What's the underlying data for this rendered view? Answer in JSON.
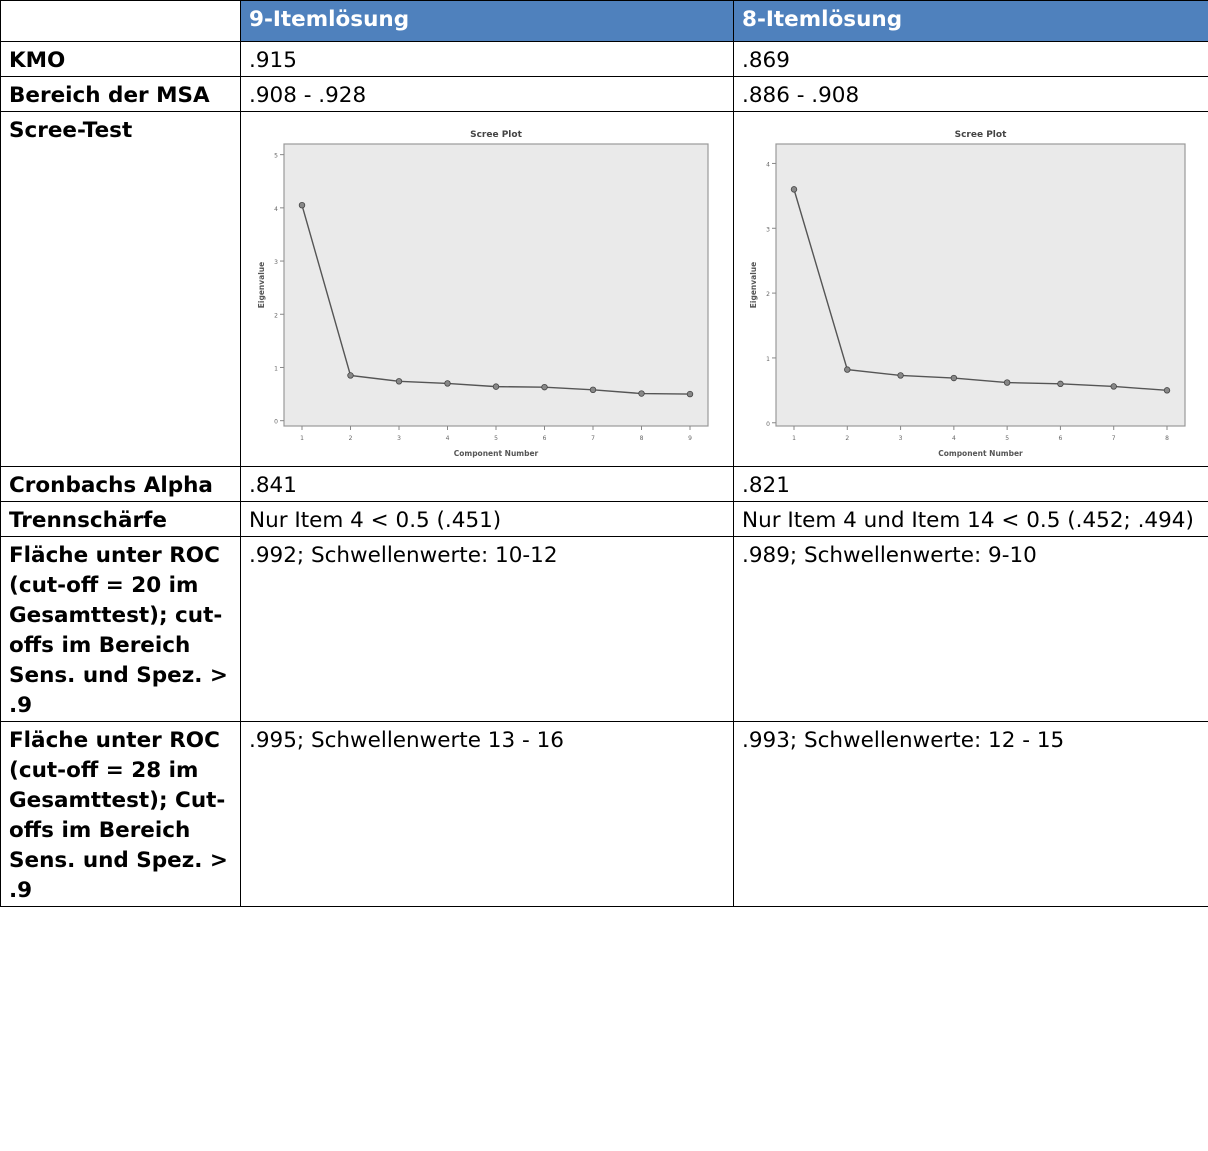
{
  "header": {
    "col1": "",
    "col2": "9-Itemlösung",
    "col3": "8-Itemlösung"
  },
  "rows": {
    "kmo": {
      "label": "KMO",
      "v9": ".915",
      "v8": ".869"
    },
    "msa": {
      "label": "Bereich der MSA",
      "v9": ".908 - .928",
      "v8": ".886 - .908"
    },
    "scree": {
      "label": "Scree-Test"
    },
    "alpha": {
      "label": "Cronbachs Alpha",
      "v9": ".841",
      "v8": ".821"
    },
    "trenn": {
      "label": "Trennschärfe",
      "v9": "Nur Item 4 < 0.5 (.451)",
      "v8": "Nur Item 4 und Item 14 < 0.5 (.452; .494)"
    },
    "roc20": {
      "label": "Fläche unter ROC (cut-off = 20 im Gesamttest); cut-offs im Bereich Sens. und Spez. > .9",
      "v9": ".992; Schwellenwerte: 10-12",
      "v8": ".989; Schwellenwerte: 9-10"
    },
    "roc28": {
      "label": "Fläche unter ROC (cut-off = 28 im Gesamttest); Cut-offs im Bereich Sens. und Spez. > .9",
      "v9": ".995; Schwellenwerte 13 - 16",
      "v8": ".993; Schwellenwerte: 12 - 15"
    }
  },
  "chart_data": [
    {
      "type": "line",
      "title": "Scree Plot",
      "xlabel": "Component Number",
      "ylabel": "Eigenvalue",
      "x": [
        1,
        2,
        3,
        4,
        5,
        6,
        7,
        8,
        9
      ],
      "values": [
        4.05,
        0.85,
        0.74,
        0.7,
        0.64,
        0.63,
        0.58,
        0.51,
        0.5
      ],
      "xticks": [
        "1",
        "2",
        "3",
        "4",
        "5",
        "6",
        "7",
        "8",
        "9"
      ],
      "yticks": [
        "0",
        "1",
        "2",
        "3",
        "4",
        "5"
      ],
      "ylim": [
        -0.1,
        5.2
      ]
    },
    {
      "type": "line",
      "title": "Scree Plot",
      "xlabel": "Component Number",
      "ylabel": "Eigenvalue",
      "x": [
        1,
        2,
        3,
        4,
        5,
        6,
        7,
        8
      ],
      "values": [
        3.6,
        0.82,
        0.73,
        0.69,
        0.62,
        0.6,
        0.56,
        0.5
      ],
      "xticks": [
        "1",
        "2",
        "3",
        "4",
        "5",
        "6",
        "7",
        "8"
      ],
      "yticks": [
        "0",
        "1",
        "2",
        "3",
        "4"
      ],
      "ylim": [
        -0.05,
        4.3
      ]
    }
  ]
}
